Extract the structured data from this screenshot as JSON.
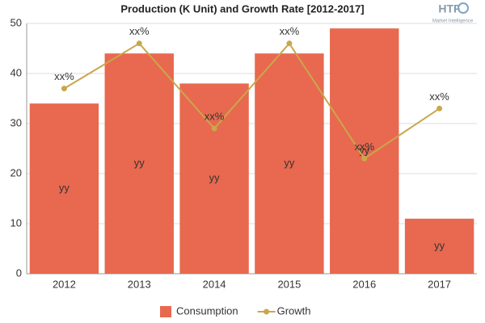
{
  "chart_data": {
    "type": "bar",
    "title": "Production (K Unit) and Growth Rate [2012-2017]",
    "logo": {
      "brand": "HTF",
      "tagline": "Market Intelligence"
    },
    "categories": [
      "2012",
      "2013",
      "2014",
      "2015",
      "2016",
      "2017"
    ],
    "series": [
      {
        "name": "Consumption",
        "type": "bar",
        "color": "#e8694f",
        "values": [
          34,
          44,
          38,
          44,
          49,
          11
        ],
        "value_labels": [
          "yy",
          "yy",
          "yy",
          "yy",
          "yy",
          "yy"
        ]
      },
      {
        "name": "Growth",
        "type": "line",
        "color": "#c9a74c",
        "values": [
          37,
          46,
          29,
          46,
          23,
          33
        ],
        "value_labels": [
          "xx%",
          "xx%",
          "xx%",
          "xx%",
          "xx%",
          "xx%"
        ]
      }
    ],
    "ylim": [
      0,
      50
    ],
    "yticks": [
      0,
      10,
      20,
      30,
      40,
      50
    ],
    "grid": true,
    "legend": "bottom"
  }
}
